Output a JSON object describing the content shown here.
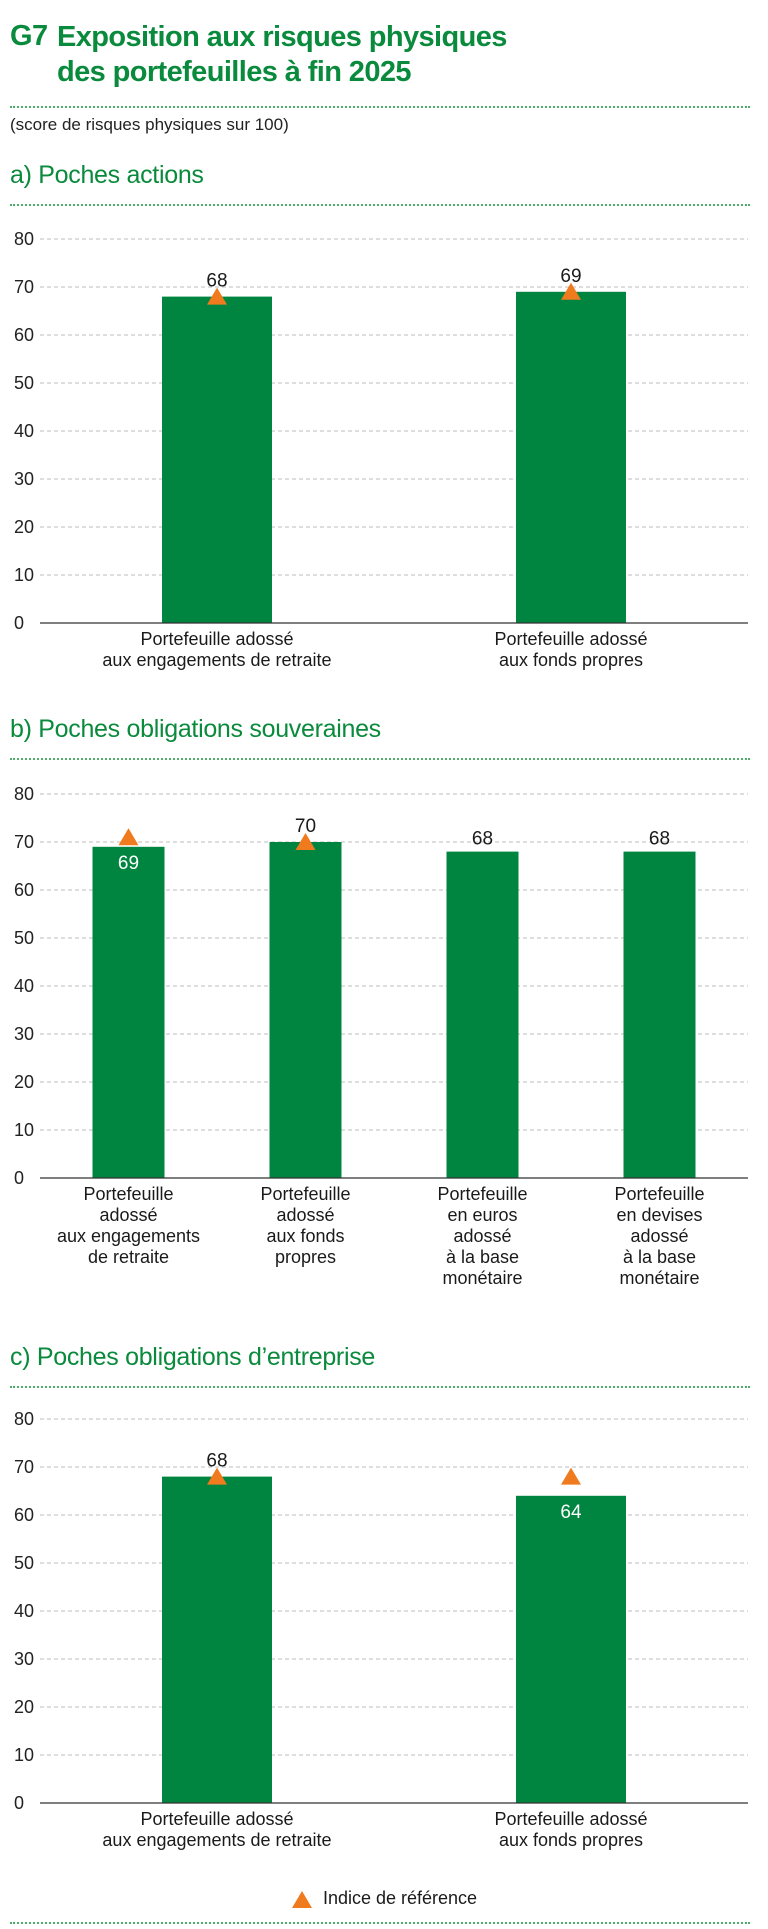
{
  "figure": {
    "code": "G7",
    "title_line1": "Exposition aux risques physiques",
    "title_line2": "des portefeuilles à fin 2025",
    "subtitle": "(score de risques physiques sur 100)"
  },
  "legend": {
    "marker_label": "Indice de référence"
  },
  "colors": {
    "bar": "#008540",
    "marker": "#f07a1e",
    "title": "#0a8a3c",
    "grid": "#bdbdbd"
  },
  "chart_data": [
    {
      "type": "bar",
      "title": "a)  Poches actions",
      "xlabel": "",
      "ylabel": "",
      "ylim": [
        0,
        80
      ],
      "yticks": [
        0,
        10,
        20,
        30,
        40,
        50,
        60,
        70,
        80
      ],
      "categories": [
        [
          "Portefeuille adossé",
          "aux engagements de retraite"
        ],
        [
          "Portefeuille adossé",
          "aux fonds propres"
        ]
      ],
      "values": [
        68,
        69
      ],
      "value_labels": [
        "68",
        "69"
      ],
      "reference_index": [
        68,
        69
      ],
      "grid": true
    },
    {
      "type": "bar",
      "title": "b)  Poches obligations souveraines",
      "xlabel": "",
      "ylabel": "",
      "ylim": [
        0,
        80
      ],
      "yticks": [
        0,
        10,
        20,
        30,
        40,
        50,
        60,
        70,
        80
      ],
      "categories": [
        [
          "Portefeuille",
          "adossé",
          "aux engagements",
          "de retraite"
        ],
        [
          "Portefeuille",
          "adossé",
          "aux fonds",
          "propres"
        ],
        [
          "Portefeuille",
          "en euros",
          "adossé",
          "à la base",
          "monétaire"
        ],
        [
          "Portefeuille",
          "en devises",
          "adossé",
          "à la base",
          "monétaire"
        ]
      ],
      "values": [
        69,
        70,
        68,
        68
      ],
      "value_labels": [
        "69",
        "70",
        "68",
        "68"
      ],
      "reference_index": [
        71,
        70,
        null,
        null
      ],
      "grid": true
    },
    {
      "type": "bar",
      "title": "c)  Poches obligations d’entreprise",
      "xlabel": "",
      "ylabel": "",
      "ylim": [
        0,
        80
      ],
      "yticks": [
        0,
        10,
        20,
        30,
        40,
        50,
        60,
        70,
        80
      ],
      "categories": [
        [
          "Portefeuille adossé",
          "aux engagements de retraite"
        ],
        [
          "Portefeuille adossé",
          "aux fonds propres"
        ]
      ],
      "values": [
        68,
        64
      ],
      "value_labels": [
        "68",
        "64"
      ],
      "reference_index": [
        68,
        68
      ],
      "grid": true
    }
  ]
}
